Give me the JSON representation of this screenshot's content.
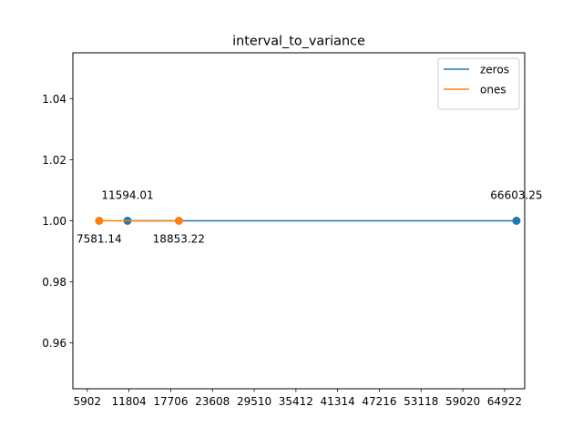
{
  "chart_data": {
    "type": "line",
    "title": "interval_to_variance",
    "xlabel": "",
    "ylabel": "",
    "xlim": [
      3867,
      67770
    ],
    "ylim": [
      0.945,
      1.055
    ],
    "x_ticks": [
      "5902",
      "11804",
      "17706",
      "23608",
      "29510",
      "35412",
      "41314",
      "47216",
      "53118",
      "59020",
      "64922"
    ],
    "y_ticks": [
      "0.96",
      "0.98",
      "1.00",
      "1.02",
      "1.04"
    ],
    "grid": false,
    "legend_position": "top-right",
    "series": [
      {
        "name": "zeros",
        "color": "#1f77b4",
        "points": [
          {
            "x": 11594.01,
            "y": 1.0,
            "label": "11594.01",
            "label_position": "above"
          },
          {
            "x": 66603.25,
            "y": 1.0,
            "label": "66603.25",
            "label_position": "above"
          }
        ]
      },
      {
        "name": "ones",
        "color": "#ff7f0e",
        "points": [
          {
            "x": 7581.14,
            "y": 1.0,
            "label": "7581.14",
            "label_position": "below"
          },
          {
            "x": 18853.22,
            "y": 1.0,
            "label": "18853.22",
            "label_position": "below"
          }
        ]
      }
    ]
  }
}
